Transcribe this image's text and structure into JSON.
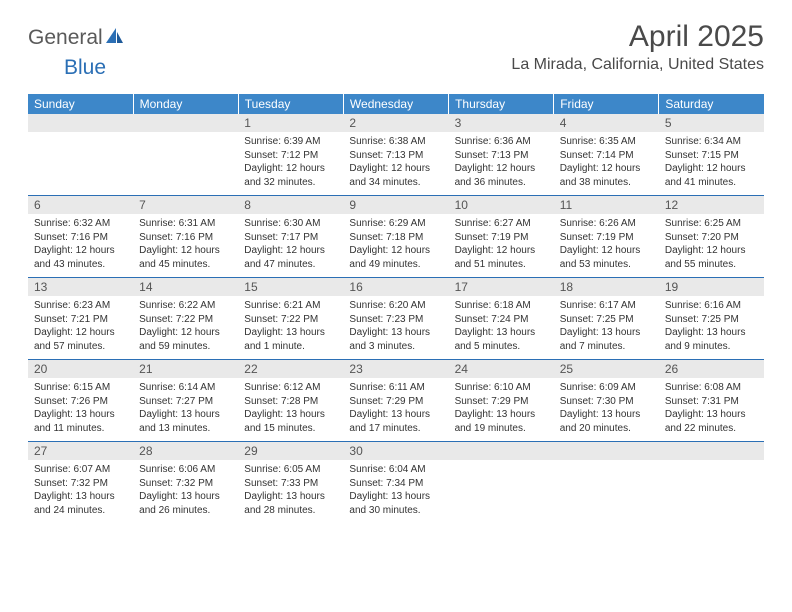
{
  "logo": {
    "word1": "General",
    "word2": "Blue"
  },
  "title": "April 2025",
  "location": "La Mirada, California, United States",
  "colors": {
    "header_bg": "#3d87c9",
    "header_text": "#ffffff",
    "daynum_bg": "#e9e9e9",
    "row_border": "#2b6fb5",
    "logo_gray": "#5a5a5a",
    "logo_blue": "#2b6fb5",
    "text": "#333333",
    "title_text": "#4a4a4a"
  },
  "weekdays": [
    "Sunday",
    "Monday",
    "Tuesday",
    "Wednesday",
    "Thursday",
    "Friday",
    "Saturday"
  ],
  "weeks": [
    [
      {
        "n": "",
        "sr": "",
        "ss": "",
        "dl": ""
      },
      {
        "n": "",
        "sr": "",
        "ss": "",
        "dl": ""
      },
      {
        "n": "1",
        "sr": "Sunrise: 6:39 AM",
        "ss": "Sunset: 7:12 PM",
        "dl": "Daylight: 12 hours and 32 minutes."
      },
      {
        "n": "2",
        "sr": "Sunrise: 6:38 AM",
        "ss": "Sunset: 7:13 PM",
        "dl": "Daylight: 12 hours and 34 minutes."
      },
      {
        "n": "3",
        "sr": "Sunrise: 6:36 AM",
        "ss": "Sunset: 7:13 PM",
        "dl": "Daylight: 12 hours and 36 minutes."
      },
      {
        "n": "4",
        "sr": "Sunrise: 6:35 AM",
        "ss": "Sunset: 7:14 PM",
        "dl": "Daylight: 12 hours and 38 minutes."
      },
      {
        "n": "5",
        "sr": "Sunrise: 6:34 AM",
        "ss": "Sunset: 7:15 PM",
        "dl": "Daylight: 12 hours and 41 minutes."
      }
    ],
    [
      {
        "n": "6",
        "sr": "Sunrise: 6:32 AM",
        "ss": "Sunset: 7:16 PM",
        "dl": "Daylight: 12 hours and 43 minutes."
      },
      {
        "n": "7",
        "sr": "Sunrise: 6:31 AM",
        "ss": "Sunset: 7:16 PM",
        "dl": "Daylight: 12 hours and 45 minutes."
      },
      {
        "n": "8",
        "sr": "Sunrise: 6:30 AM",
        "ss": "Sunset: 7:17 PM",
        "dl": "Daylight: 12 hours and 47 minutes."
      },
      {
        "n": "9",
        "sr": "Sunrise: 6:29 AM",
        "ss": "Sunset: 7:18 PM",
        "dl": "Daylight: 12 hours and 49 minutes."
      },
      {
        "n": "10",
        "sr": "Sunrise: 6:27 AM",
        "ss": "Sunset: 7:19 PM",
        "dl": "Daylight: 12 hours and 51 minutes."
      },
      {
        "n": "11",
        "sr": "Sunrise: 6:26 AM",
        "ss": "Sunset: 7:19 PM",
        "dl": "Daylight: 12 hours and 53 minutes."
      },
      {
        "n": "12",
        "sr": "Sunrise: 6:25 AM",
        "ss": "Sunset: 7:20 PM",
        "dl": "Daylight: 12 hours and 55 minutes."
      }
    ],
    [
      {
        "n": "13",
        "sr": "Sunrise: 6:23 AM",
        "ss": "Sunset: 7:21 PM",
        "dl": "Daylight: 12 hours and 57 minutes."
      },
      {
        "n": "14",
        "sr": "Sunrise: 6:22 AM",
        "ss": "Sunset: 7:22 PM",
        "dl": "Daylight: 12 hours and 59 minutes."
      },
      {
        "n": "15",
        "sr": "Sunrise: 6:21 AM",
        "ss": "Sunset: 7:22 PM",
        "dl": "Daylight: 13 hours and 1 minute."
      },
      {
        "n": "16",
        "sr": "Sunrise: 6:20 AM",
        "ss": "Sunset: 7:23 PM",
        "dl": "Daylight: 13 hours and 3 minutes."
      },
      {
        "n": "17",
        "sr": "Sunrise: 6:18 AM",
        "ss": "Sunset: 7:24 PM",
        "dl": "Daylight: 13 hours and 5 minutes."
      },
      {
        "n": "18",
        "sr": "Sunrise: 6:17 AM",
        "ss": "Sunset: 7:25 PM",
        "dl": "Daylight: 13 hours and 7 minutes."
      },
      {
        "n": "19",
        "sr": "Sunrise: 6:16 AM",
        "ss": "Sunset: 7:25 PM",
        "dl": "Daylight: 13 hours and 9 minutes."
      }
    ],
    [
      {
        "n": "20",
        "sr": "Sunrise: 6:15 AM",
        "ss": "Sunset: 7:26 PM",
        "dl": "Daylight: 13 hours and 11 minutes."
      },
      {
        "n": "21",
        "sr": "Sunrise: 6:14 AM",
        "ss": "Sunset: 7:27 PM",
        "dl": "Daylight: 13 hours and 13 minutes."
      },
      {
        "n": "22",
        "sr": "Sunrise: 6:12 AM",
        "ss": "Sunset: 7:28 PM",
        "dl": "Daylight: 13 hours and 15 minutes."
      },
      {
        "n": "23",
        "sr": "Sunrise: 6:11 AM",
        "ss": "Sunset: 7:29 PM",
        "dl": "Daylight: 13 hours and 17 minutes."
      },
      {
        "n": "24",
        "sr": "Sunrise: 6:10 AM",
        "ss": "Sunset: 7:29 PM",
        "dl": "Daylight: 13 hours and 19 minutes."
      },
      {
        "n": "25",
        "sr": "Sunrise: 6:09 AM",
        "ss": "Sunset: 7:30 PM",
        "dl": "Daylight: 13 hours and 20 minutes."
      },
      {
        "n": "26",
        "sr": "Sunrise: 6:08 AM",
        "ss": "Sunset: 7:31 PM",
        "dl": "Daylight: 13 hours and 22 minutes."
      }
    ],
    [
      {
        "n": "27",
        "sr": "Sunrise: 6:07 AM",
        "ss": "Sunset: 7:32 PM",
        "dl": "Daylight: 13 hours and 24 minutes."
      },
      {
        "n": "28",
        "sr": "Sunrise: 6:06 AM",
        "ss": "Sunset: 7:32 PM",
        "dl": "Daylight: 13 hours and 26 minutes."
      },
      {
        "n": "29",
        "sr": "Sunrise: 6:05 AM",
        "ss": "Sunset: 7:33 PM",
        "dl": "Daylight: 13 hours and 28 minutes."
      },
      {
        "n": "30",
        "sr": "Sunrise: 6:04 AM",
        "ss": "Sunset: 7:34 PM",
        "dl": "Daylight: 13 hours and 30 minutes."
      },
      {
        "n": "",
        "sr": "",
        "ss": "",
        "dl": ""
      },
      {
        "n": "",
        "sr": "",
        "ss": "",
        "dl": ""
      },
      {
        "n": "",
        "sr": "",
        "ss": "",
        "dl": ""
      }
    ]
  ]
}
